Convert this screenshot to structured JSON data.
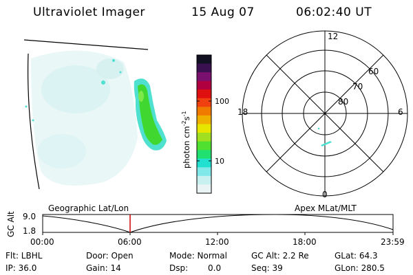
{
  "header": {
    "instrument": "Ultraviolet Imager",
    "date": "15 Aug 07",
    "time": "06:02:40 UT"
  },
  "colorbar": {
    "label_main": "photon cm",
    "label_exp1": "-2",
    "label_mid": "s",
    "label_exp2": "-1",
    "ticks": [
      "100",
      "10"
    ],
    "colors": [
      "#111122",
      "#3a1050",
      "#7a1070",
      "#b00040",
      "#e01010",
      "#f04010",
      "#f07a00",
      "#f0b000",
      "#e6e600",
      "#a0e020",
      "#50e030",
      "#20e070",
      "#20e0d0",
      "#80e8e8",
      "#c8f0f0",
      "#eaf4f4"
    ]
  },
  "polar_plot": {
    "mlt_labels": {
      "top": "12",
      "left": "18",
      "right": "6",
      "bottom": "0"
    },
    "lat_labels": [
      "60",
      "70",
      "80"
    ]
  },
  "timeline": {
    "ylabel": "GC Alt",
    "left_label": "Geographic Lat/Lon",
    "right_label": "Apex MLat/MLT",
    "y_max": "9.0",
    "y_min": "1.8",
    "x_ticks": [
      "00:00",
      "06:00",
      "12:00",
      "18:00",
      "23:59"
    ],
    "cursor_time": "06:02:40",
    "cursor_color": "#cc0000"
  },
  "info": {
    "flt": "Flt: LBHL",
    "ip": "IP: 36.0",
    "door": "Door: Open",
    "gain": "Gain: 14",
    "mode": "Mode: Normal",
    "dsp": "Dsp:",
    "dsp_value": "0.0",
    "gc_alt": "GC Alt: 2.2 Re",
    "seq": "Seq: 39",
    "glat": "GLat:  64.3",
    "glon": "GLon: 280.5"
  },
  "image": {
    "aurora_color_peak": "#40d830",
    "aurora_color_mid": "#4fe0d0",
    "background_haze": "#cfeeee"
  }
}
